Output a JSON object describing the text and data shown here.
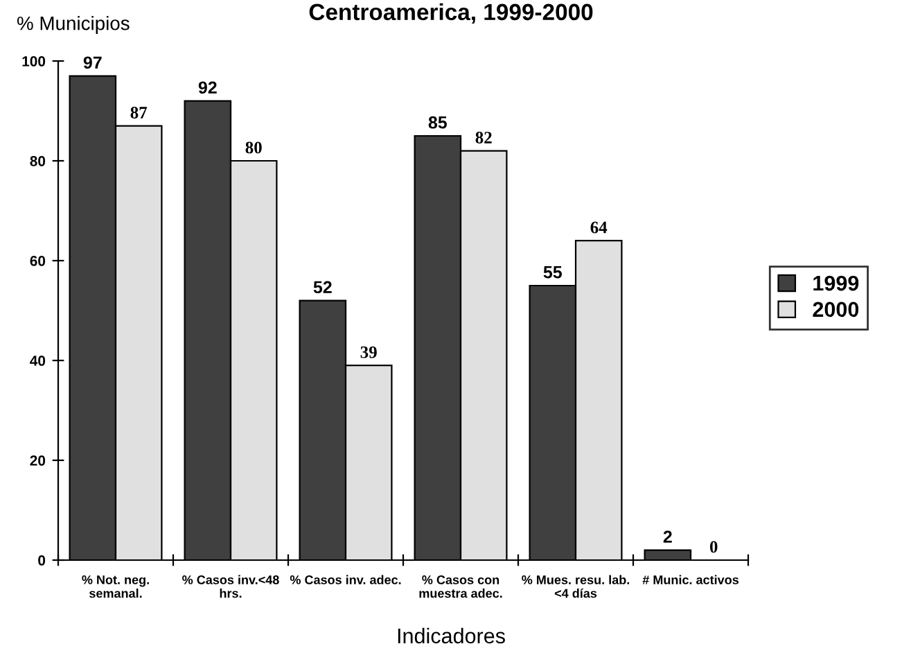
{
  "chart_data": {
    "type": "bar",
    "title": "Centroamerica, 1999-2000",
    "ylabel": "% Municipios",
    "xlabel": "Indicadores",
    "categories": [
      "% Not. neg.\nsemanal.",
      "% Casos inv.<48\nhrs.",
      "% Casos inv. adec.",
      "% Casos con\nmuestra adec.",
      "% Mues. resu. lab.\n<4 días",
      "# Munic. activos"
    ],
    "series": [
      {
        "name": "1999",
        "color": "#404040",
        "values": [
          97,
          92,
          52,
          85,
          55,
          2
        ]
      },
      {
        "name": "2000",
        "color": "#e0e0e0",
        "values": [
          87,
          80,
          39,
          82,
          64,
          0
        ]
      }
    ],
    "ylim": [
      0,
      100
    ],
    "yticks": [
      0,
      20,
      40,
      60,
      80,
      100
    ],
    "data_labels": true,
    "legend": "right",
    "grid": false
  }
}
